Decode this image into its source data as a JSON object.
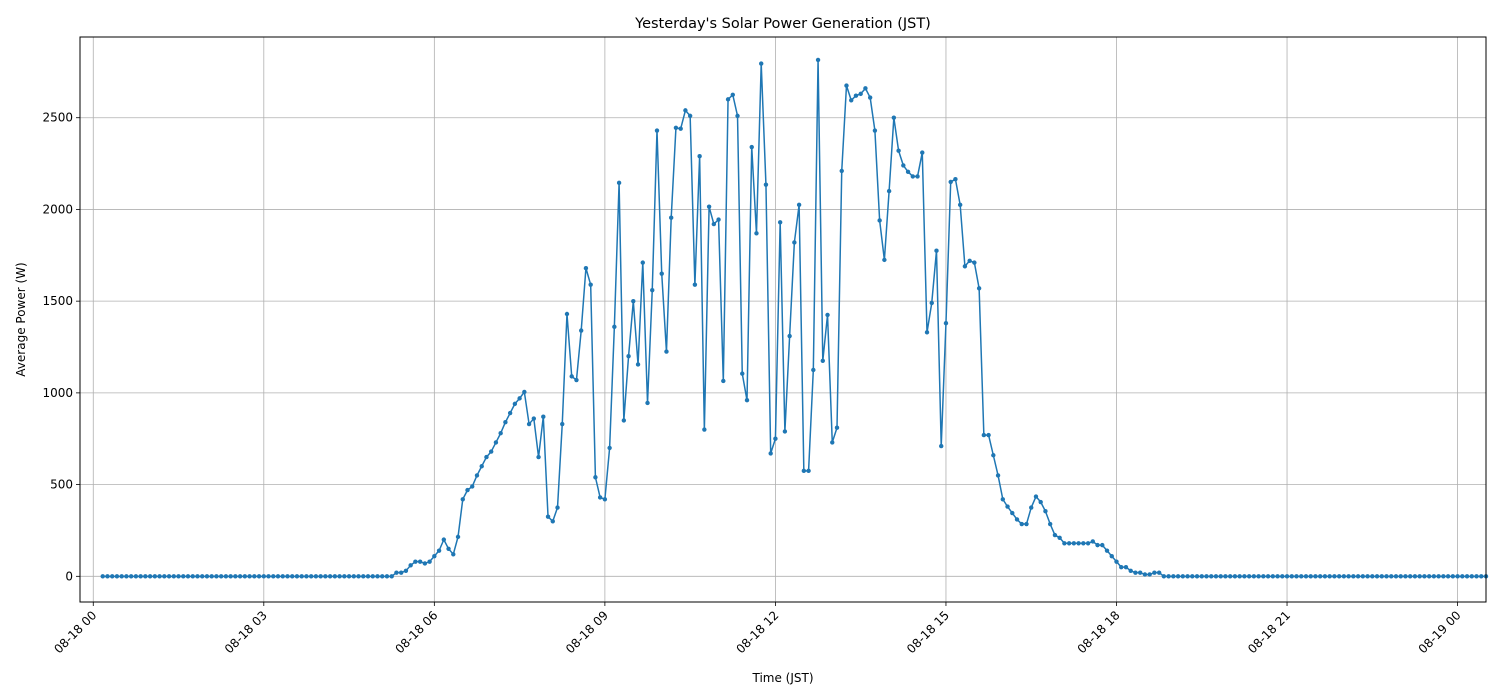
{
  "chart_data": {
    "type": "line",
    "title": "Yesterday's Solar Power Generation (JST)",
    "xlabel": "Time (JST)",
    "ylabel": "Average Power (W)",
    "x_axis": {
      "type": "datetime",
      "range": [
        "2025-08-17T23:46",
        "2025-08-19T00:30"
      ],
      "ticks": [
        "08-18 00",
        "08-18 03",
        "08-18 06",
        "08-18 09",
        "08-18 12",
        "08-18 15",
        "08-18 18",
        "08-18 21",
        "08-19 00"
      ]
    },
    "y_axis": {
      "range": [
        -140,
        2940
      ],
      "ticks": [
        0,
        500,
        1000,
        1500,
        2000,
        2500
      ]
    },
    "grid": true,
    "line_color": "#1f77b4",
    "marker": "dot",
    "series": [
      {
        "x_start": "2025-08-18T00:10",
        "x_end": "2025-08-19T00:00",
        "interval_minutes": 5,
        "values": [
          0,
          0,
          0,
          0,
          0,
          0,
          0,
          0,
          0,
          0,
          0,
          0,
          0,
          0,
          0,
          0,
          0,
          0,
          0,
          0,
          0,
          0,
          0,
          0,
          0,
          0,
          0,
          0,
          0,
          0,
          0,
          0,
          0,
          0,
          0,
          0,
          0,
          0,
          0,
          0,
          0,
          0,
          0,
          0,
          0,
          0,
          0,
          0,
          0,
          0,
          0,
          0,
          0,
          0,
          0,
          0,
          0,
          0,
          0,
          0,
          0,
          0,
          20,
          20,
          30,
          60,
          80,
          80,
          70,
          80,
          110,
          140,
          200,
          150,
          120,
          215,
          420,
          470,
          490,
          550,
          600,
          650,
          680,
          730,
          780,
          840,
          890,
          940,
          970,
          1005,
          830,
          860,
          650,
          870,
          325,
          300,
          375,
          830,
          1430,
          1090,
          1070,
          1340,
          1680,
          1590,
          540,
          430,
          420,
          700,
          1360,
          2145,
          850,
          1200,
          1500,
          1155,
          1710,
          945,
          1560,
          2430,
          1650,
          1225,
          1955,
          2445,
          2440,
          2540,
          2510,
          1590,
          2290,
          800,
          2015,
          1920,
          1945,
          1065,
          2600,
          2625,
          2510,
          1105,
          960,
          2340,
          1870,
          2795,
          2135,
          670,
          750,
          1930,
          790,
          1310,
          1820,
          2025,
          575,
          575,
          1125,
          2815,
          1175,
          1425,
          730,
          810,
          2210,
          2675,
          2595,
          2620,
          2630,
          2660,
          2610,
          2430,
          1940,
          1725,
          2100,
          2500,
          2320,
          2240,
          2205,
          2180,
          2180,
          2310,
          1330,
          1490,
          1775,
          710,
          1380,
          2150,
          2165,
          2025,
          1690,
          1720,
          1710,
          1570,
          770,
          770,
          660,
          550,
          420,
          380,
          345,
          310,
          285,
          285,
          375,
          435,
          405,
          355,
          285,
          225,
          210,
          180,
          180,
          180,
          180,
          180,
          180,
          190,
          170,
          170,
          140,
          110,
          80,
          50,
          50,
          30,
          20,
          20,
          10,
          10,
          20,
          20,
          0,
          0,
          0,
          0,
          0,
          0,
          0,
          0,
          0,
          0,
          0,
          0,
          0,
          0,
          0,
          0,
          0,
          0,
          0,
          0,
          0,
          0,
          0,
          0,
          0,
          0,
          0,
          0,
          0,
          0,
          0,
          0,
          0,
          0,
          0,
          0,
          0,
          0,
          0,
          0,
          0,
          0,
          0,
          0,
          0,
          0,
          0,
          0,
          0,
          0,
          0,
          0,
          0,
          0,
          0,
          0,
          0,
          0,
          0,
          0,
          0,
          0,
          0,
          0,
          0,
          0,
          0,
          0,
          0
        ]
      }
    ]
  }
}
